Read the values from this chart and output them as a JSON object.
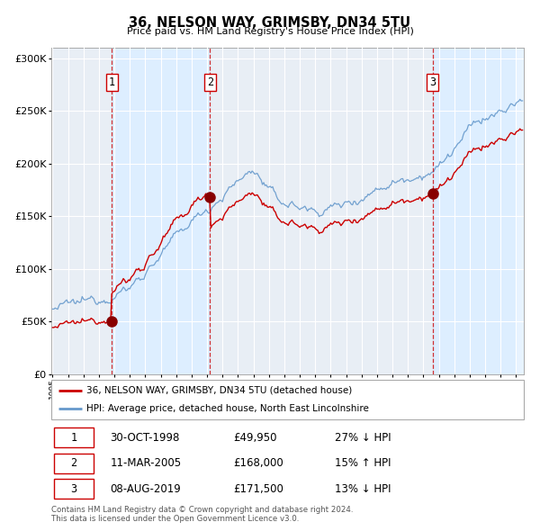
{
  "title": "36, NELSON WAY, GRIMSBY, DN34 5TU",
  "subtitle": "Price paid vs. HM Land Registry's House Price Index (HPI)",
  "legend_line1": "36, NELSON WAY, GRIMSBY, DN34 5TU (detached house)",
  "legend_line2": "HPI: Average price, detached house, North East Lincolnshire",
  "sale_points": [
    {
      "date_year": 1998.83,
      "price": 49950,
      "label": "1"
    },
    {
      "date_year": 2005.19,
      "price": 168000,
      "label": "2"
    },
    {
      "date_year": 2019.59,
      "price": 171500,
      "label": "3"
    }
  ],
  "table_rows": [
    {
      "num": "1",
      "date": "30-OCT-1998",
      "price": "£49,950",
      "hpi": "27% ↓ HPI"
    },
    {
      "num": "2",
      "date": "11-MAR-2005",
      "price": "£168,000",
      "hpi": "15% ↑ HPI"
    },
    {
      "num": "3",
      "date": "08-AUG-2019",
      "price": "£171,500",
      "hpi": "13% ↓ HPI"
    }
  ],
  "footer": "Contains HM Land Registry data © Crown copyright and database right 2024.\nThis data is licensed under the Open Government Licence v3.0.",
  "red_color": "#cc0000",
  "blue_color": "#6699cc",
  "dashed_color": "#cc0000",
  "bg_shade_color": "#ddeeff",
  "grid_color": "#ffffff",
  "plot_bg_color": "#e8eef5",
  "ylim": [
    0,
    310000
  ],
  "yticks": [
    0,
    50000,
    100000,
    150000,
    200000,
    250000,
    300000
  ],
  "xlim_start": 1994.92,
  "xlim_end": 2025.5
}
